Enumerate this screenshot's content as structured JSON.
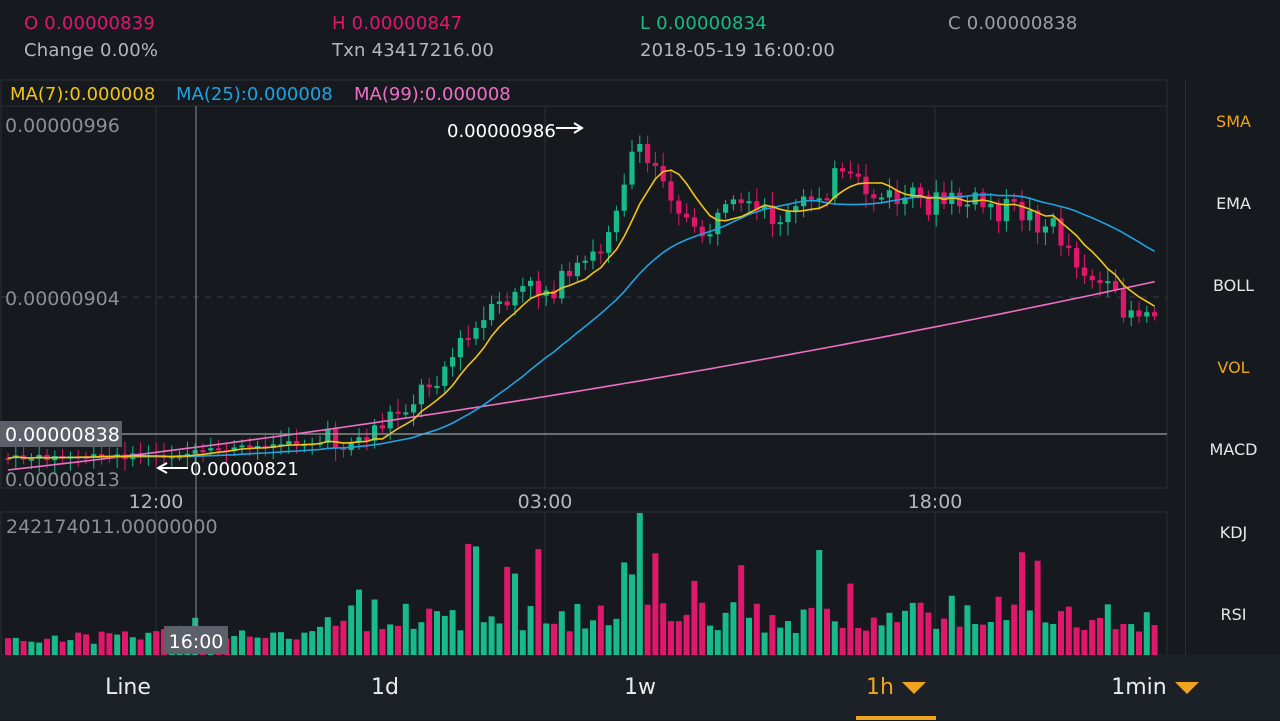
{
  "header": {
    "open": "O 0.00000839",
    "high": "H 0.00000847",
    "low": "L 0.00000834",
    "close": "C 0.00000838",
    "change": "Change 0.00%",
    "txn": "Txn 43417216.00",
    "datetime": "2018-05-19 16:00:00"
  },
  "legend": {
    "ma7": "MA(7):0.000008",
    "ma25": "MA(25):0.000008",
    "ma99": "MA(99):0.000008"
  },
  "price_axis": {
    "top_label": "0.00000996",
    "mid_label": "0.00000904",
    "bottom_label": "0.00000813",
    "current_label": "0.00000838"
  },
  "annotations": {
    "high_marker": "0.00000986",
    "low_marker": "0.00000821"
  },
  "time_axis": {
    "labels": [
      "12:00",
      "03:00",
      "18:00"
    ],
    "crosshair_label": "16:00"
  },
  "volume": {
    "max_label": "242174011.00000000"
  },
  "colors": {
    "up": "#18b98a",
    "down": "#e0186c",
    "ma7": "#f0c419",
    "ma25": "#1fa3e3",
    "ma99": "#ee6fc6",
    "accent": "#f0a41d"
  },
  "side_menu": {
    "items": [
      {
        "label": "SMA",
        "active": true
      },
      {
        "label": "EMA",
        "active": false
      },
      {
        "label": "BOLL",
        "active": false
      },
      {
        "label": "VOL",
        "active": true
      },
      {
        "label": "MACD",
        "active": false
      },
      {
        "label": "KDJ",
        "active": false
      },
      {
        "label": "RSI",
        "active": false
      }
    ]
  },
  "bottom_tabs": {
    "line": "Line",
    "day": "1d",
    "week": "1w",
    "hour": "1h",
    "minute": "1min"
  }
}
